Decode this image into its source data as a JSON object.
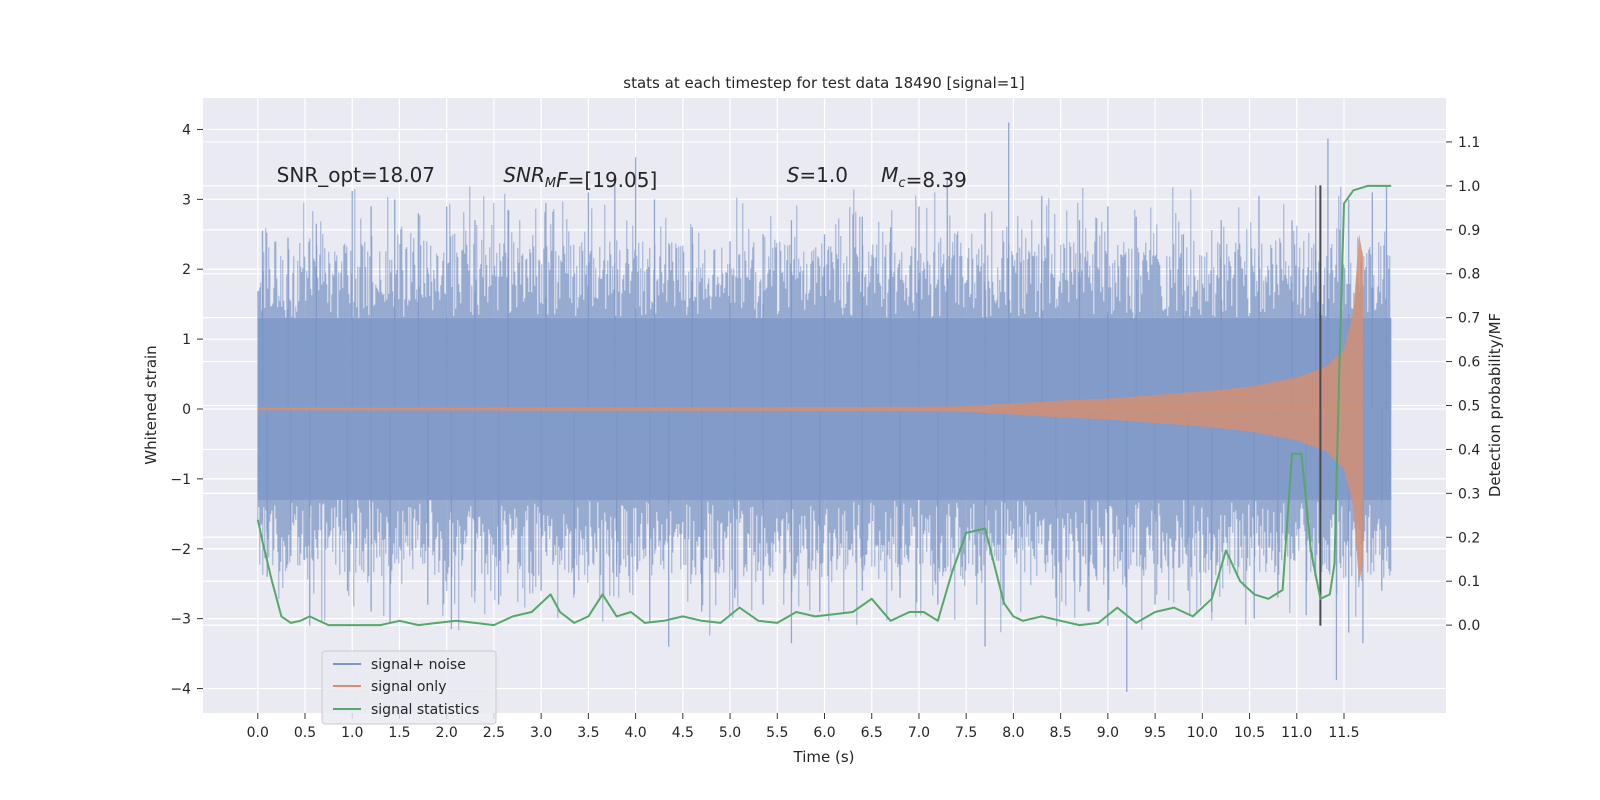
{
  "chart_data": {
    "type": "line",
    "title": "stats at each timestep for test data 18490 [signal=1]",
    "xlabel": "Time (s)",
    "ylabel_left": "Whitened strain",
    "ylabel_right": "Detection probability/MF",
    "xlim": [
      -0.58,
      12.58
    ],
    "ylim_left": [
      -4.35,
      4.45
    ],
    "ylim_right": [
      -0.2,
      1.2
    ],
    "x_ticks": [
      "0.0",
      "0.5",
      "1.0",
      "1.5",
      "2.0",
      "2.5",
      "3.0",
      "3.5",
      "4.0",
      "4.5",
      "5.0",
      "5.5",
      "6.0",
      "6.5",
      "7.0",
      "7.5",
      "8.0",
      "8.5",
      "9.0",
      "9.5",
      "10.0",
      "10.5",
      "11.0",
      "11.5"
    ],
    "y_ticks_left": [
      "4",
      "3",
      "2",
      "1",
      "0",
      "−1",
      "−2",
      "−3",
      "−4"
    ],
    "y_ticks_right": [
      "1.1",
      "1.0",
      "0.9",
      "0.8",
      "0.7",
      "0.6",
      "0.5",
      "0.4",
      "0.3",
      "0.2",
      "0.1",
      "0.0"
    ],
    "grid": true,
    "legend_position": "lower-left",
    "legend": [
      "signal+ noise",
      "signal only",
      "signal statistics"
    ],
    "annotations": [
      {
        "parts": [
          {
            "text": "SNR_opt=18.07",
            "italic": false
          }
        ],
        "x": 0.2,
        "y": 3.25
      },
      {
        "parts": [
          {
            "text": "SNR",
            "italic": true
          },
          {
            "text": "M",
            "italic": true,
            "sub": true
          },
          {
            "text": "F",
            "italic": true
          },
          {
            "text": "=[19.05]",
            "italic": false
          }
        ],
        "x": 2.6,
        "y": 3.25
      },
      {
        "parts": [
          {
            "text": "S",
            "italic": true
          },
          {
            "text": "=1.0",
            "italic": false
          }
        ],
        "x": 5.6,
        "y": 3.25
      },
      {
        "parts": [
          {
            "text": "M",
            "italic": true
          },
          {
            "text": "c",
            "italic": true,
            "sub": true
          },
          {
            "text": "=8.39",
            "italic": false
          }
        ],
        "x": 6.6,
        "y": 3.25
      }
    ],
    "vline_x": 11.25,
    "vline_ylim": [
      -3.1,
      3.2
    ],
    "colors": {
      "noise": "#7b95c6",
      "signal": "#d48f74",
      "stats": "#55a868",
      "vline": "#4a4a4a",
      "background": "#eaeaf2",
      "grid": "#ffffff"
    },
    "series": [
      {
        "name": "signal+ noise",
        "axis": "left",
        "style": "noisy-band",
        "t_start": 0.0,
        "t_end": 12.0,
        "core_band": [
          -1.3,
          1.3
        ],
        "upper_spikes": [
          [
            0.05,
            2.55
          ],
          [
            0.32,
            2.45
          ],
          [
            0.62,
            2.65
          ],
          [
            1.0,
            3.12
          ],
          [
            1.2,
            2.9
          ],
          [
            1.45,
            3.0
          ],
          [
            1.7,
            2.8
          ],
          [
            2.0,
            2.9
          ],
          [
            2.3,
            2.7
          ],
          [
            2.65,
            2.85
          ],
          [
            3.05,
            2.95
          ],
          [
            3.5,
            3.1
          ],
          [
            3.78,
            3.35
          ],
          [
            4.0,
            3.6
          ],
          [
            4.2,
            3.0
          ],
          [
            4.6,
            2.6
          ],
          [
            5.0,
            2.4
          ],
          [
            5.35,
            2.5
          ],
          [
            5.65,
            2.7
          ],
          [
            6.0,
            2.5
          ],
          [
            6.4,
            2.75
          ],
          [
            6.7,
            2.6
          ],
          [
            7.0,
            2.9
          ],
          [
            7.3,
            3.3
          ],
          [
            7.7,
            2.8
          ],
          [
            7.95,
            4.1
          ],
          [
            8.3,
            3.05
          ],
          [
            8.7,
            2.7
          ],
          [
            9.0,
            2.9
          ],
          [
            9.3,
            2.75
          ],
          [
            9.8,
            2.5
          ],
          [
            10.2,
            2.7
          ],
          [
            10.6,
            3.05
          ],
          [
            10.95,
            2.7
          ],
          [
            11.2,
            3.2
          ],
          [
            11.33,
            3.87
          ],
          [
            11.55,
            3.0
          ],
          [
            11.8,
            3.1
          ],
          [
            11.95,
            3.2
          ]
        ],
        "lower_spikes": [
          [
            0.1,
            -2.4
          ],
          [
            0.35,
            -2.1
          ],
          [
            0.55,
            -3.1
          ],
          [
            0.95,
            -2.6
          ],
          [
            1.2,
            -2.9
          ],
          [
            1.4,
            -3.05
          ],
          [
            1.8,
            -2.8
          ],
          [
            2.05,
            -3.15
          ],
          [
            2.3,
            -2.6
          ],
          [
            2.55,
            -2.8
          ],
          [
            3.0,
            -2.6
          ],
          [
            3.35,
            -2.65
          ],
          [
            3.8,
            -2.4
          ],
          [
            4.15,
            -3.05
          ],
          [
            4.35,
            -3.4
          ],
          [
            4.7,
            -2.9
          ],
          [
            5.05,
            -2.7
          ],
          [
            5.35,
            -2.8
          ],
          [
            5.65,
            -3.35
          ],
          [
            5.95,
            -2.9
          ],
          [
            6.4,
            -2.6
          ],
          [
            6.8,
            -2.7
          ],
          [
            7.2,
            -2.8
          ],
          [
            7.7,
            -3.4
          ],
          [
            7.9,
            -2.8
          ],
          [
            8.45,
            -2.7
          ],
          [
            8.8,
            -2.9
          ],
          [
            9.0,
            -3.1
          ],
          [
            9.2,
            -4.05
          ],
          [
            9.5,
            -2.8
          ],
          [
            9.85,
            -2.6
          ],
          [
            10.1,
            -2.9
          ],
          [
            10.55,
            -3.0
          ],
          [
            10.8,
            -2.7
          ],
          [
            11.1,
            -2.95
          ],
          [
            11.42,
            -3.88
          ],
          [
            11.55,
            -3.2
          ],
          [
            11.7,
            -3.35
          ],
          [
            11.9,
            -2.6
          ]
        ]
      },
      {
        "name": "signal only",
        "axis": "left",
        "style": "chirp-envelope",
        "t_start": 0.0,
        "t_end": 11.7,
        "envelope": [
          [
            0.0,
            0.02
          ],
          [
            7.0,
            0.03
          ],
          [
            7.5,
            0.04
          ],
          [
            8.0,
            0.08
          ],
          [
            8.5,
            0.12
          ],
          [
            9.0,
            0.15
          ],
          [
            9.5,
            0.2
          ],
          [
            10.0,
            0.25
          ],
          [
            10.5,
            0.32
          ],
          [
            11.0,
            0.45
          ],
          [
            11.3,
            0.6
          ],
          [
            11.5,
            0.85
          ],
          [
            11.6,
            1.4
          ],
          [
            11.66,
            2.5
          ],
          [
            11.7,
            2.2
          ],
          [
            11.72,
            0.0
          ]
        ]
      },
      {
        "name": "signal statistics",
        "axis": "right",
        "points": [
          [
            0.0,
            0.24
          ],
          [
            0.05,
            0.19
          ],
          [
            0.15,
            0.1
          ],
          [
            0.25,
            0.02
          ],
          [
            0.35,
            0.005
          ],
          [
            0.45,
            0.01
          ],
          [
            0.55,
            0.02
          ],
          [
            0.65,
            0.01
          ],
          [
            0.75,
            0.0
          ],
          [
            0.9,
            0.0
          ],
          [
            1.1,
            0.0
          ],
          [
            1.3,
            0.0
          ],
          [
            1.5,
            0.01
          ],
          [
            1.7,
            0.0
          ],
          [
            1.9,
            0.005
          ],
          [
            2.1,
            0.01
          ],
          [
            2.3,
            0.005
          ],
          [
            2.5,
            0.0
          ],
          [
            2.7,
            0.02
          ],
          [
            2.9,
            0.03
          ],
          [
            3.1,
            0.07
          ],
          [
            3.2,
            0.03
          ],
          [
            3.35,
            0.005
          ],
          [
            3.5,
            0.02
          ],
          [
            3.65,
            0.07
          ],
          [
            3.8,
            0.02
          ],
          [
            3.95,
            0.03
          ],
          [
            4.1,
            0.005
          ],
          [
            4.3,
            0.01
          ],
          [
            4.5,
            0.02
          ],
          [
            4.7,
            0.01
          ],
          [
            4.9,
            0.005
          ],
          [
            5.1,
            0.04
          ],
          [
            5.3,
            0.01
          ],
          [
            5.5,
            0.005
          ],
          [
            5.7,
            0.03
          ],
          [
            5.9,
            0.02
          ],
          [
            6.1,
            0.025
          ],
          [
            6.3,
            0.03
          ],
          [
            6.5,
            0.06
          ],
          [
            6.7,
            0.01
          ],
          [
            6.9,
            0.03
          ],
          [
            7.05,
            0.03
          ],
          [
            7.2,
            0.01
          ],
          [
            7.35,
            0.12
          ],
          [
            7.5,
            0.21
          ],
          [
            7.7,
            0.22
          ],
          [
            7.9,
            0.05
          ],
          [
            8.0,
            0.02
          ],
          [
            8.1,
            0.01
          ],
          [
            8.3,
            0.02
          ],
          [
            8.5,
            0.01
          ],
          [
            8.7,
            0.0
          ],
          [
            8.9,
            0.005
          ],
          [
            9.1,
            0.04
          ],
          [
            9.3,
            0.005
          ],
          [
            9.5,
            0.03
          ],
          [
            9.7,
            0.04
          ],
          [
            9.9,
            0.02
          ],
          [
            10.1,
            0.06
          ],
          [
            10.25,
            0.17
          ],
          [
            10.4,
            0.1
          ],
          [
            10.55,
            0.07
          ],
          [
            10.7,
            0.06
          ],
          [
            10.85,
            0.08
          ],
          [
            10.95,
            0.39
          ],
          [
            11.05,
            0.39
          ],
          [
            11.15,
            0.17
          ],
          [
            11.25,
            0.06
          ],
          [
            11.35,
            0.07
          ],
          [
            11.4,
            0.14
          ],
          [
            11.45,
            0.58
          ],
          [
            11.5,
            0.96
          ],
          [
            11.6,
            0.99
          ],
          [
            11.75,
            1.0
          ],
          [
            12.0,
            1.0
          ]
        ]
      }
    ]
  }
}
